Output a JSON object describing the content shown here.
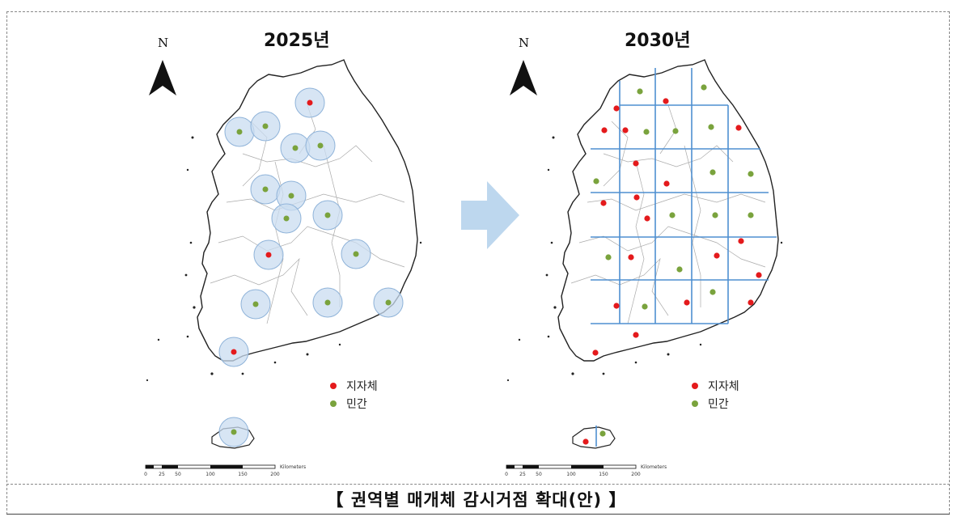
{
  "maps": [
    {
      "title": "2025년",
      "north_label": "N"
    },
    {
      "title": "2030년",
      "north_label": "N"
    }
  ],
  "legend": [
    {
      "label": "지자체",
      "color": "#e41a1c"
    },
    {
      "label": "민간",
      "color": "#7aa33d"
    }
  ],
  "scale_bar": {
    "ticks": [
      "0",
      "25",
      "50",
      "100",
      "150",
      "200"
    ],
    "unit": "Kilometers"
  },
  "colors": {
    "arrow": "#bdd7ee",
    "buffer": "#c9dcf0",
    "grid": "#4f8fd1",
    "land_outline": "#222222"
  },
  "caption": "【 권역별 매개체 감시거점 확대(안) 】",
  "icons": [
    "north-arrow-icon",
    "transition-arrow-icon"
  ]
}
